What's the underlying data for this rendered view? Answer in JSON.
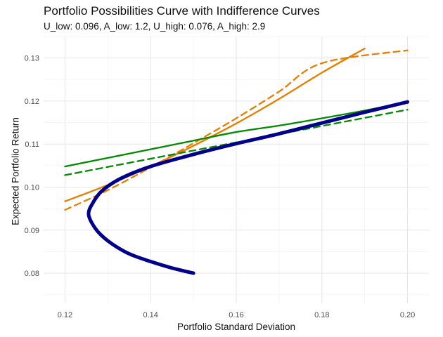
{
  "chart_data": {
    "type": "line",
    "title": "Portfolio Possibilities Curve with Indifference Curves",
    "subtitle": "U_low: 0.096, A_low: 1.2, U_high: 0.076, A_high: 2.9",
    "xlabel": "Portfolio Standard Deviation",
    "ylabel": "Expected Portfolio Return",
    "xlim": [
      0.115,
      0.205
    ],
    "ylim": [
      0.073,
      0.135
    ],
    "x_ticks": [
      "0.12",
      "0.14",
      "0.16",
      "0.18",
      "0.20"
    ],
    "y_ticks": [
      "0.08",
      "0.09",
      "0.10",
      "0.11",
      "0.12",
      "0.13"
    ],
    "grid": true,
    "legend": "none",
    "series": [
      {
        "color": "#00008b",
        "style": "solid",
        "width": "thick",
        "points": [
          [
            0.15,
            0.08
          ],
          [
            0.145,
            0.0812
          ],
          [
            0.14,
            0.0827
          ],
          [
            0.135,
            0.0845
          ],
          [
            0.131,
            0.0868
          ],
          [
            0.128,
            0.0893
          ],
          [
            0.1262,
            0.0918
          ],
          [
            0.1255,
            0.0938
          ],
          [
            0.1262,
            0.0958
          ],
          [
            0.1285,
            0.099
          ],
          [
            0.133,
            0.102
          ],
          [
            0.14,
            0.1048
          ],
          [
            0.15,
            0.1076
          ],
          [
            0.16,
            0.1101
          ],
          [
            0.17,
            0.1124
          ],
          [
            0.18,
            0.1149
          ],
          [
            0.19,
            0.1174
          ],
          [
            0.2,
            0.1198
          ]
        ]
      },
      {
        "color": "#e67e00",
        "style": "solid",
        "width": "normal",
        "points": [
          [
            0.12,
            0.0967
          ],
          [
            0.13,
            0.1005
          ],
          [
            0.14,
            0.1048
          ],
          [
            0.15,
            0.1096
          ],
          [
            0.16,
            0.1148
          ],
          [
            0.17,
            0.1205
          ],
          [
            0.18,
            0.1266
          ],
          [
            0.19,
            0.1322
          ]
        ]
      },
      {
        "color": "#e67e00",
        "style": "dashed",
        "width": "normal",
        "points": [
          [
            0.12,
            0.0947
          ],
          [
            0.13,
            0.0993
          ],
          [
            0.14,
            0.1046
          ],
          [
            0.15,
            0.1102
          ],
          [
            0.16,
            0.116
          ],
          [
            0.17,
            0.1222
          ],
          [
            0.18,
            0.1288
          ],
          [
            0.2,
            0.1318
          ]
        ]
      },
      {
        "color": "#008b00",
        "style": "solid",
        "width": "normal",
        "points": [
          [
            0.12,
            0.1048
          ],
          [
            0.13,
            0.1068
          ],
          [
            0.14,
            0.1088
          ],
          [
            0.15,
            0.1108
          ],
          [
            0.16,
            0.1128
          ],
          [
            0.17,
            0.1143
          ],
          [
            0.18,
            0.116
          ],
          [
            0.19,
            0.1178
          ],
          [
            0.2,
            0.1198
          ]
        ]
      },
      {
        "color": "#008b00",
        "style": "dashed",
        "width": "normal",
        "points": [
          [
            0.12,
            0.1028
          ],
          [
            0.13,
            0.1047
          ],
          [
            0.14,
            0.1066
          ],
          [
            0.15,
            0.1085
          ],
          [
            0.16,
            0.1104
          ],
          [
            0.17,
            0.1123
          ],
          [
            0.18,
            0.1142
          ],
          [
            0.19,
            0.1161
          ],
          [
            0.2,
            0.118
          ]
        ]
      }
    ]
  }
}
